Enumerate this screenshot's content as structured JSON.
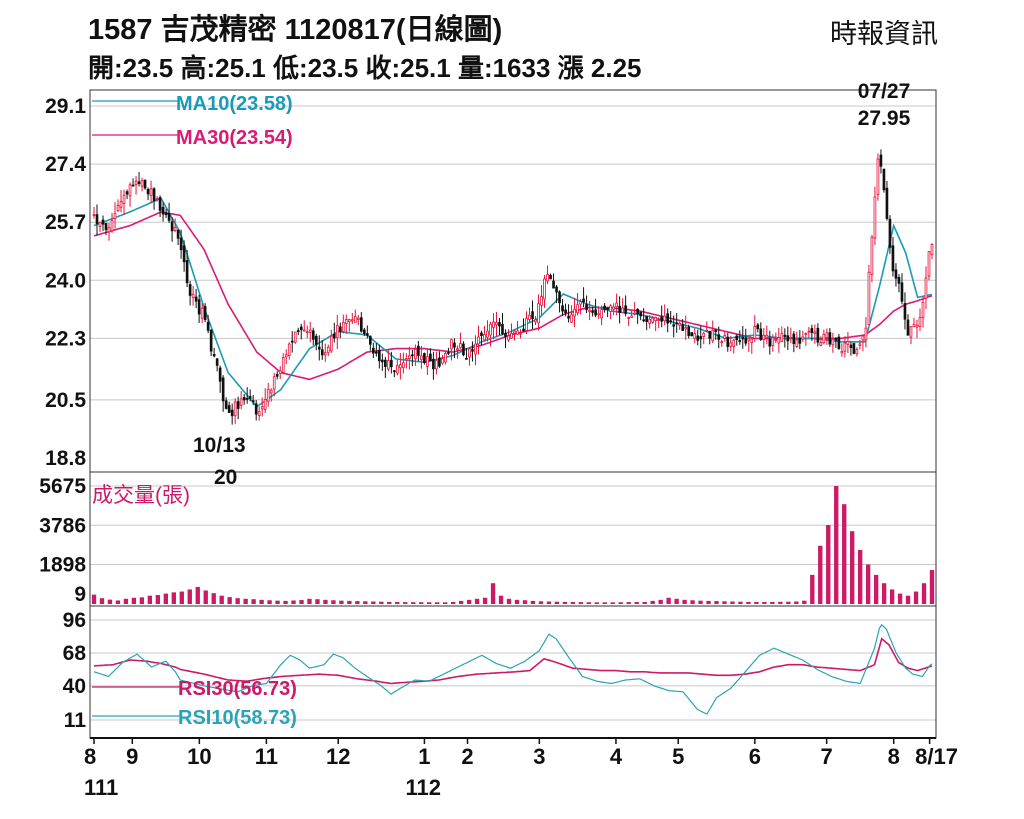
{
  "header": {
    "title": "1587  吉茂精密 1120817(日線圖)",
    "source": "時報資訊",
    "stats": "開:23.5 高:25.1 低:23.5 收:25.1 量:1633 漲 2.25"
  },
  "colors": {
    "up": "#e8103a",
    "down": "#111111",
    "ma10": "#1a9bb5",
    "ma30": "#d81b74",
    "volume": "#cc1a66",
    "rsi30": "#cc1a66",
    "rsi10": "#2aa3b8",
    "grid": "#c8c8c8"
  },
  "chart_data": [
    {
      "type": "candlestick",
      "panel": "price",
      "y_ticks": [
        "29.1",
        "27.4",
        "25.7",
        "24.0",
        "22.3",
        "20.5",
        "18.8"
      ],
      "ylim": [
        18.8,
        29.1
      ],
      "legend": [
        {
          "name": "MA10(23.58)",
          "color": "#1a9bb5"
        },
        {
          "name": "MA30(23.54)",
          "color": "#d81b74"
        }
      ],
      "annotations": [
        {
          "text": "10/13",
          "sub": "20",
          "value": 20.0,
          "date": "111/10/13"
        },
        {
          "text": "07/27",
          "sub": "27.95",
          "value": 27.95,
          "date": "112/07/27"
        }
      ],
      "months": [
        {
          "label": "8",
          "x": 0.0
        },
        {
          "label": "9",
          "x": 1.6
        },
        {
          "label": "10",
          "x": 4.4
        },
        {
          "label": "11",
          "x": 7.2
        },
        {
          "label": "12",
          "x": 10.2
        },
        {
          "label": "1",
          "x": 13.8
        },
        {
          "label": "2",
          "x": 15.6
        },
        {
          "label": "3",
          "x": 18.6
        },
        {
          "label": "4",
          "x": 21.8
        },
        {
          "label": "5",
          "x": 24.4
        },
        {
          "label": "6",
          "x": 27.6
        },
        {
          "label": "7",
          "x": 30.6
        },
        {
          "label": "8",
          "x": 33.4
        },
        {
          "label": "8/17",
          "x": 34.9
        }
      ],
      "years": [
        {
          "label": "111",
          "x": 0.0
        },
        {
          "label": "112",
          "x": 14.0
        }
      ],
      "anchors": [
        [
          0.0,
          25.8
        ],
        [
          0.6,
          25.6
        ],
        [
          1.2,
          26.3
        ],
        [
          1.8,
          27.0
        ],
        [
          2.4,
          26.5
        ],
        [
          3.0,
          26.0
        ],
        [
          3.5,
          25.2
        ],
        [
          4.0,
          23.7
        ],
        [
          4.6,
          22.9
        ],
        [
          5.2,
          21.2
        ],
        [
          5.6,
          20.0
        ],
        [
          6.2,
          20.6
        ],
        [
          6.8,
          20.2
        ],
        [
          7.3,
          20.7
        ],
        [
          7.8,
          21.4
        ],
        [
          8.4,
          22.4
        ],
        [
          9.0,
          22.6
        ],
        [
          9.6,
          21.8
        ],
        [
          10.2,
          22.6
        ],
        [
          10.8,
          23.0
        ],
        [
          11.4,
          22.3
        ],
        [
          12.0,
          21.7
        ],
        [
          12.6,
          21.4
        ],
        [
          13.2,
          21.9
        ],
        [
          13.8,
          21.7
        ],
        [
          14.4,
          21.5
        ],
        [
          15.0,
          22.2
        ],
        [
          15.6,
          21.8
        ],
        [
          16.2,
          22.5
        ],
        [
          16.8,
          22.7
        ],
        [
          17.4,
          22.4
        ],
        [
          18.0,
          22.7
        ],
        [
          18.5,
          23.0
        ],
        [
          18.9,
          24.3
        ],
        [
          19.3,
          23.6
        ],
        [
          19.8,
          22.9
        ],
        [
          20.4,
          23.3
        ],
        [
          21.0,
          23.0
        ],
        [
          21.6,
          23.2
        ],
        [
          22.2,
          23.1
        ],
        [
          22.8,
          23.0
        ],
        [
          23.4,
          22.9
        ],
        [
          24.0,
          22.8
        ],
        [
          24.6,
          22.7
        ],
        [
          25.2,
          22.3
        ],
        [
          25.8,
          22.4
        ],
        [
          26.4,
          22.2
        ],
        [
          27.0,
          22.1
        ],
        [
          27.6,
          22.5
        ],
        [
          28.2,
          22.2
        ],
        [
          28.8,
          22.3
        ],
        [
          29.4,
          22.2
        ],
        [
          30.0,
          22.4
        ],
        [
          30.6,
          22.3
        ],
        [
          31.2,
          22.1
        ],
        [
          31.8,
          22.0
        ],
        [
          32.2,
          22.3
        ],
        [
          32.5,
          25.5
        ],
        [
          32.8,
          27.95
        ],
        [
          33.1,
          26.0
        ],
        [
          33.4,
          24.2
        ],
        [
          33.7,
          23.6
        ],
        [
          34.0,
          22.5
        ],
        [
          34.3,
          22.6
        ],
        [
          34.6,
          23.2
        ],
        [
          34.95,
          25.1
        ]
      ],
      "ma10_anchors": [
        [
          0.0,
          25.6
        ],
        [
          1.5,
          26.0
        ],
        [
          2.8,
          26.4
        ],
        [
          3.6,
          25.4
        ],
        [
          4.6,
          23.2
        ],
        [
          5.6,
          21.3
        ],
        [
          6.8,
          20.3
        ],
        [
          7.8,
          20.8
        ],
        [
          9.0,
          22.0
        ],
        [
          10.2,
          22.5
        ],
        [
          11.4,
          22.4
        ],
        [
          12.6,
          21.7
        ],
        [
          13.8,
          21.6
        ],
        [
          15.0,
          21.8
        ],
        [
          16.2,
          22.2
        ],
        [
          17.4,
          22.5
        ],
        [
          18.6,
          22.9
        ],
        [
          19.6,
          23.6
        ],
        [
          20.6,
          23.3
        ],
        [
          21.6,
          23.1
        ],
        [
          22.8,
          23.0
        ],
        [
          24.0,
          22.8
        ],
        [
          25.2,
          22.6
        ],
        [
          26.4,
          22.3
        ],
        [
          27.6,
          22.4
        ],
        [
          28.8,
          22.3
        ],
        [
          30.0,
          22.3
        ],
        [
          31.2,
          22.2
        ],
        [
          32.2,
          22.2
        ],
        [
          32.8,
          23.8
        ],
        [
          33.4,
          25.6
        ],
        [
          33.9,
          24.8
        ],
        [
          34.4,
          23.5
        ],
        [
          34.95,
          23.58
        ]
      ],
      "ma30_anchors": [
        [
          0.0,
          25.3
        ],
        [
          1.5,
          25.6
        ],
        [
          2.8,
          26.0
        ],
        [
          3.6,
          25.9
        ],
        [
          4.6,
          24.9
        ],
        [
          5.6,
          23.3
        ],
        [
          6.8,
          21.9
        ],
        [
          7.8,
          21.3
        ],
        [
          9.0,
          21.1
        ],
        [
          10.2,
          21.4
        ],
        [
          11.4,
          21.9
        ],
        [
          12.6,
          22.0
        ],
        [
          13.8,
          22.0
        ],
        [
          15.0,
          21.9
        ],
        [
          16.2,
          22.1
        ],
        [
          17.4,
          22.4
        ],
        [
          18.6,
          22.6
        ],
        [
          19.6,
          23.0
        ],
        [
          20.6,
          23.2
        ],
        [
          21.6,
          23.2
        ],
        [
          22.8,
          23.1
        ],
        [
          24.0,
          22.9
        ],
        [
          25.2,
          22.7
        ],
        [
          26.4,
          22.5
        ],
        [
          27.6,
          22.3
        ],
        [
          28.8,
          22.3
        ],
        [
          30.0,
          22.3
        ],
        [
          31.2,
          22.3
        ],
        [
          32.2,
          22.4
        ],
        [
          32.8,
          22.7
        ],
        [
          33.4,
          23.1
        ],
        [
          33.9,
          23.3
        ],
        [
          34.4,
          23.4
        ],
        [
          34.95,
          23.54
        ]
      ]
    },
    {
      "type": "bar",
      "panel": "volume",
      "label": "成交量(張)",
      "y_ticks": [
        "5675",
        "3786",
        "1898",
        "9"
      ],
      "ylim": [
        9,
        5675
      ],
      "values": [
        450,
        280,
        210,
        170,
        250,
        300,
        320,
        400,
        430,
        500,
        560,
        600,
        700,
        820,
        650,
        520,
        400,
        330,
        280,
        250,
        230,
        200,
        180,
        160,
        150,
        170,
        190,
        250,
        230,
        200,
        180,
        160,
        150,
        140,
        130,
        120,
        110,
        100,
        95,
        90,
        88,
        86,
        84,
        82,
        80,
        100,
        150,
        200,
        250,
        300,
        1000,
        400,
        250,
        200,
        180,
        150,
        130,
        120,
        110,
        100,
        95,
        90,
        85,
        80,
        80,
        80,
        85,
        90,
        95,
        100,
        150,
        200,
        300,
        250,
        200,
        180,
        160,
        150,
        140,
        130,
        120,
        110,
        100,
        100,
        100,
        100,
        105,
        110,
        120,
        160,
        1400,
        2800,
        3800,
        5675,
        4800,
        3500,
        2600,
        1900,
        1400,
        1000,
        700,
        500,
        400,
        600,
        1000,
        1633
      ]
    },
    {
      "type": "line",
      "panel": "rsi",
      "y_ticks": [
        "96",
        "68",
        "40",
        "11"
      ],
      "ylim": [
        11,
        96
      ],
      "series": [
        {
          "name": "RSI30(56.73)",
          "color": "#cc1a66",
          "points": [
            [
              0.0,
              57
            ],
            [
              0.8,
              58
            ],
            [
              1.5,
              62
            ],
            [
              2.2,
              61
            ],
            [
              2.8,
              59
            ],
            [
              3.4,
              56
            ],
            [
              3.6,
              54
            ],
            [
              4.6,
              50
            ],
            [
              5.6,
              45
            ],
            [
              6.4,
              44
            ],
            [
              7.0,
              46
            ],
            [
              7.8,
              48
            ],
            [
              8.6,
              49
            ],
            [
              9.4,
              50
            ],
            [
              10.2,
              49
            ],
            [
              11.0,
              46
            ],
            [
              11.8,
              44
            ],
            [
              12.4,
              42
            ],
            [
              13.0,
              43
            ],
            [
              13.8,
              44
            ],
            [
              14.4,
              45
            ],
            [
              15.2,
              48
            ],
            [
              16.0,
              50
            ],
            [
              16.8,
              51
            ],
            [
              17.6,
              52
            ],
            [
              18.2,
              53
            ],
            [
              18.8,
              63
            ],
            [
              19.3,
              60
            ],
            [
              20.0,
              55
            ],
            [
              20.6,
              54
            ],
            [
              21.2,
              53
            ],
            [
              21.8,
              53
            ],
            [
              22.4,
              52
            ],
            [
              23.0,
              52
            ],
            [
              23.6,
              51
            ],
            [
              24.2,
              51
            ],
            [
              24.8,
              51
            ],
            [
              25.4,
              50
            ],
            [
              26.0,
              49
            ],
            [
              26.6,
              49
            ],
            [
              27.2,
              50
            ],
            [
              27.8,
              52
            ],
            [
              28.4,
              56
            ],
            [
              29.0,
              58
            ],
            [
              29.6,
              58
            ],
            [
              30.2,
              56
            ],
            [
              30.8,
              55
            ],
            [
              31.4,
              54
            ],
            [
              32.0,
              53
            ],
            [
              32.6,
              58
            ],
            [
              32.9,
              80
            ],
            [
              33.2,
              75
            ],
            [
              33.6,
              60
            ],
            [
              34.0,
              55
            ],
            [
              34.4,
              53
            ],
            [
              34.95,
              56.73
            ]
          ]
        },
        {
          "name": "RSI10(58.73)",
          "color": "#2aa3b8",
          "points": [
            [
              0.0,
              52
            ],
            [
              0.6,
              48
            ],
            [
              1.2,
              60
            ],
            [
              1.8,
              67
            ],
            [
              2.4,
              56
            ],
            [
              3.0,
              61
            ],
            [
              3.4,
              52
            ],
            [
              3.6,
              45
            ],
            [
              4.6,
              40
            ],
            [
              5.4,
              37
            ],
            [
              6.0,
              35
            ],
            [
              6.6,
              40
            ],
            [
              7.2,
              42
            ],
            [
              7.8,
              58
            ],
            [
              8.2,
              66
            ],
            [
              8.6,
              62
            ],
            [
              9.0,
              55
            ],
            [
              9.6,
              58
            ],
            [
              10.0,
              67
            ],
            [
              10.4,
              64
            ],
            [
              10.9,
              55
            ],
            [
              11.4,
              48
            ],
            [
              12.0,
              40
            ],
            [
              12.4,
              33
            ],
            [
              12.8,
              38
            ],
            [
              13.4,
              45
            ],
            [
              14.0,
              44
            ],
            [
              14.6,
              50
            ],
            [
              15.2,
              56
            ],
            [
              15.8,
              62
            ],
            [
              16.2,
              66
            ],
            [
              16.8,
              59
            ],
            [
              17.4,
              55
            ],
            [
              18.0,
              61
            ],
            [
              18.6,
              70
            ],
            [
              19.0,
              84
            ],
            [
              19.3,
              80
            ],
            [
              19.8,
              65
            ],
            [
              20.4,
              48
            ],
            [
              21.0,
              44
            ],
            [
              21.6,
              42
            ],
            [
              22.2,
              45
            ],
            [
              22.8,
              46
            ],
            [
              23.4,
              40
            ],
            [
              24.0,
              36
            ],
            [
              24.6,
              35
            ],
            [
              25.2,
              20
            ],
            [
              25.6,
              16
            ],
            [
              26.0,
              30
            ],
            [
              26.6,
              38
            ],
            [
              27.2,
              52
            ],
            [
              27.8,
              66
            ],
            [
              28.4,
              72
            ],
            [
              29.0,
              67
            ],
            [
              29.6,
              62
            ],
            [
              30.2,
              54
            ],
            [
              30.8,
              48
            ],
            [
              31.4,
              44
            ],
            [
              32.0,
              42
            ],
            [
              32.6,
              72
            ],
            [
              32.85,
              93
            ],
            [
              33.1,
              88
            ],
            [
              33.5,
              68
            ],
            [
              33.9,
              55
            ],
            [
              34.2,
              50
            ],
            [
              34.6,
              48
            ],
            [
              34.95,
              58.73
            ]
          ]
        }
      ]
    }
  ]
}
